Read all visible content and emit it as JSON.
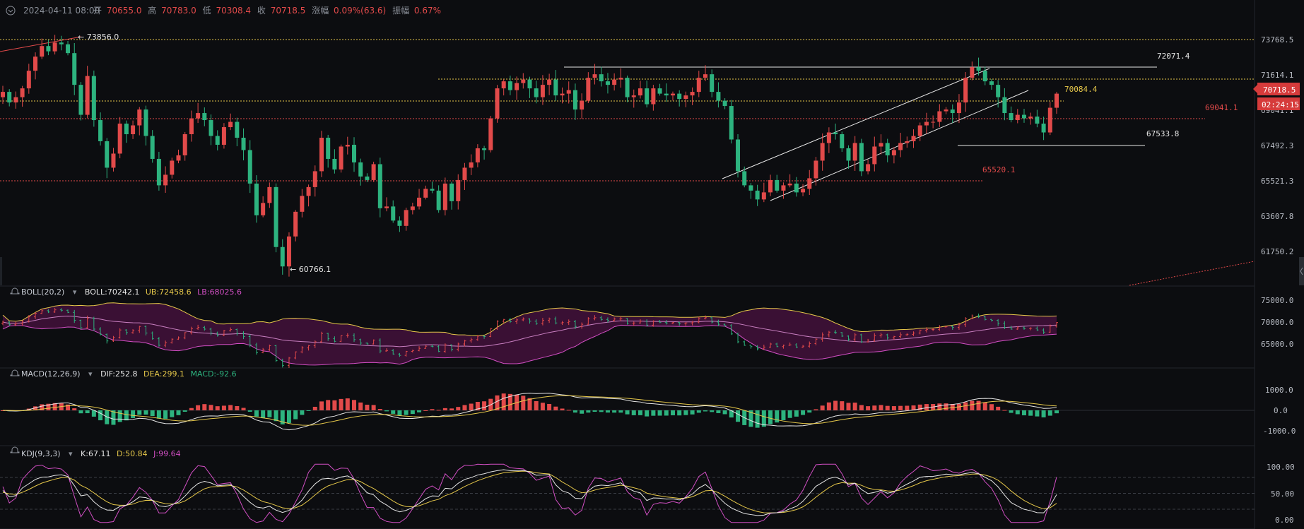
{
  "header": {
    "datetime": "2024-04-11 08:00",
    "open_label": "开",
    "open": "70655.0",
    "high_label": "高",
    "high": "70783.0",
    "low_label": "低",
    "low": "70308.4",
    "close_label": "收",
    "close": "70718.5",
    "change_label": "涨幅",
    "change": "0.09%(63.6)",
    "amp_label": "振幅",
    "amp": "0.67%"
  },
  "colors": {
    "up": "#e24a4a",
    "down": "#2db37f",
    "bg": "#0c0d10",
    "yellow": "#e6c84a",
    "magenta": "#d24fc4",
    "white": "#e6e6e6"
  },
  "main": {
    "price_axis": [
      "73768.5",
      "71614.1",
      "69041.1",
      "67492.3",
      "65521.3",
      "63607.8",
      "61750.2"
    ],
    "current_price": "70718.5",
    "countdown": "02:24:15",
    "annotations": {
      "high_marker": "73856.0",
      "low_marker": "60766.1",
      "level_72071": "72071.4",
      "level_70084": "70084.4",
      "level_69041": "69041.1",
      "level_67533": "67533.8",
      "level_65520": "65520.1"
    }
  },
  "boll": {
    "name": "BOLL(20,2)",
    "boll_label": "BOLL:",
    "boll": "70242.1",
    "ub_label": "UB:",
    "ub": "72458.6",
    "lb_label": "LB:",
    "lb": "68025.6",
    "axis": [
      "75000.0",
      "70000.0",
      "65000.0"
    ]
  },
  "macd": {
    "name": "MACD(12,26,9)",
    "dif_label": "DIF:",
    "dif": "252.8",
    "dea_label": "DEA:",
    "dea": "299.1",
    "macd_label": "MACD:",
    "macd": "-92.6",
    "axis": [
      "1000.0",
      "0.0",
      "-1000.0"
    ]
  },
  "kdj": {
    "name": "KDJ(9,3,3)",
    "k_label": "K:",
    "k": "67.11",
    "d_label": "D:",
    "d": "50.84",
    "j_label": "J:",
    "j": "99.64",
    "axis": [
      "100.00",
      "50.00",
      "0.00"
    ]
  },
  "chart_data": {
    "type": "candlestick",
    "closes": [
      70800,
      70200,
      70500,
      71000,
      72000,
      72800,
      73400,
      73100,
      73600,
      73500,
      73000,
      71200,
      69500,
      71700,
      69200,
      68000,
      66500,
      67300,
      69000,
      68400,
      68900,
      69800,
      68300,
      67000,
      65500,
      66100,
      66900,
      67200,
      68400,
      69300,
      69600,
      69200,
      68300,
      67800,
      68800,
      69100,
      68200,
      67500,
      65600,
      63800,
      64500,
      65400,
      62000,
      60900,
      62600,
      64000,
      64900,
      65400,
      66300,
      68200,
      67000,
      66400,
      67700,
      67800,
      66800,
      66000,
      65800,
      66700,
      64200,
      64300,
      63500,
      63200,
      64100,
      64300,
      64800,
      65300,
      65200,
      64100,
      65600,
      64600,
      65800,
      66500,
      66800,
      67600,
      67500,
      69300,
      71000,
      71400,
      70900,
      71300,
      71500,
      71000,
      70500,
      71200,
      71500,
      70600,
      70700,
      70900,
      69800,
      70300,
      71600,
      71800,
      71400,
      71200,
      71500,
      71600,
      70500,
      70600,
      71000,
      70100,
      71000,
      70700,
      70600,
      70700,
      70400,
      70600,
      70800,
      71600,
      71800,
      70800,
      70300,
      70000,
      68100,
      66300,
      65500,
      65200,
      64700,
      65100,
      65800,
      65200,
      65500,
      65600,
      65100,
      65300,
      65900,
      66900,
      67900,
      68500,
      68400,
      67600,
      66900,
      67900,
      66300,
      66700,
      67700,
      67900,
      67200,
      67500,
      67900,
      68000,
      68300,
      68900,
      69100,
      69100,
      69700,
      69800,
      69600,
      70200,
      71600,
      72200,
      72000,
      71400,
      71200,
      70500,
      69600,
      69200,
      69500,
      69300,
      69400,
      69000,
      68500,
      69900,
      70700
    ]
  }
}
